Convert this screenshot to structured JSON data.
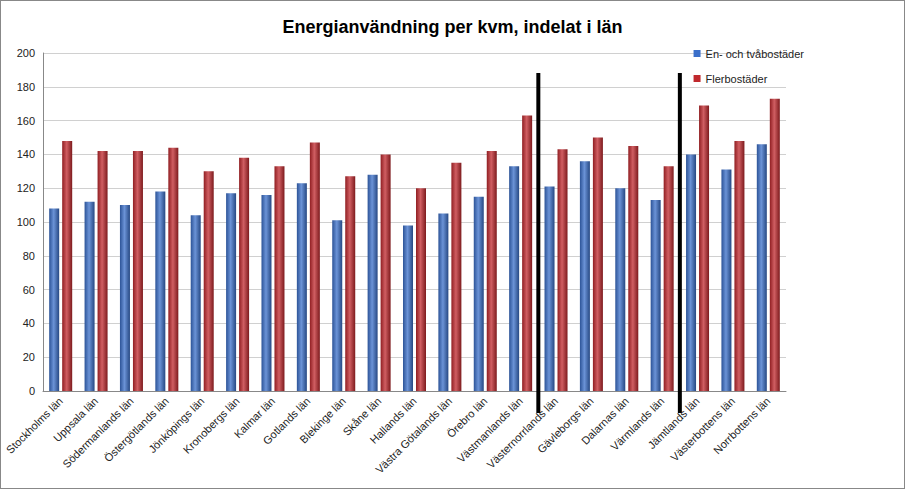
{
  "chart_data": {
    "type": "bar",
    "title": "Energianvändning per kvm, indelat i län",
    "categories": [
      "Stockholms län",
      "Uppsala län",
      "Södermanlands län",
      "Östergötlands län",
      "Jönköpings län",
      "Kronobergs län",
      "Kalmar län",
      "Gotlands län",
      "Blekinge län",
      "Skåne län",
      "Hallands län",
      "Västra Götalands län",
      "Örebro län",
      "Västmanlands län",
      "Västernorrlands län",
      "Gävleborgs län",
      "Dalarnas län",
      "Värmlands län",
      "Jämtlands län",
      "Västerbottens län",
      "Norrbottens län"
    ],
    "series": [
      {
        "name": "En- och tvåbostäder",
        "color": "#3a6fc9",
        "values": [
          108,
          112,
          110,
          118,
          104,
          117,
          116,
          123,
          101,
          128,
          98,
          105,
          115,
          133,
          121,
          136,
          120,
          113,
          140,
          131,
          146
        ]
      },
      {
        "name": "Flerbostäder",
        "color": "#c0282d",
        "values": [
          148,
          142,
          142,
          144,
          130,
          138,
          133,
          147,
          127,
          140,
          120,
          135,
          142,
          163,
          143,
          150,
          145,
          133,
          169,
          148,
          173
        ]
      }
    ],
    "ylim": [
      0,
      200
    ],
    "yticks": [
      0,
      20,
      40,
      60,
      80,
      100,
      120,
      140,
      160,
      180,
      200
    ],
    "grid": true,
    "legend": "top-right"
  }
}
